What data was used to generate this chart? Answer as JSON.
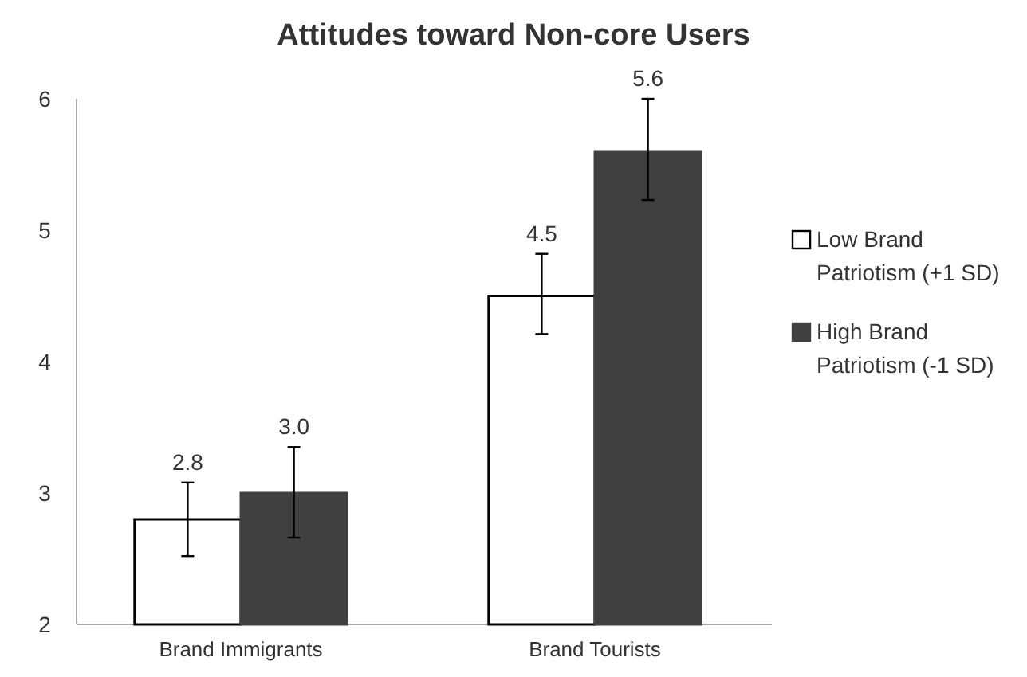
{
  "chart_data": {
    "type": "bar",
    "title": "Attitudes toward Non-core Users",
    "categories": [
      "Brand Immigrants",
      "Brand Tourists"
    ],
    "series": [
      {
        "name": "Low Brand Patriotism (+1 SD)",
        "color": "#ffffff",
        "values": [
          2.8,
          4.5
        ],
        "value_labels": [
          "2.8",
          "4.5"
        ],
        "errors": [
          [
            2.52,
            3.08
          ],
          [
            4.21,
            4.82
          ]
        ]
      },
      {
        "name": "High Brand Patriotism (-1 SD)",
        "color": "#404040",
        "values": [
          3.0,
          5.6
        ],
        "value_labels": [
          "3.0",
          "5.6"
        ],
        "errors": [
          [
            2.66,
            3.35
          ],
          [
            5.23,
            6.0
          ]
        ]
      }
    ],
    "ylim": [
      2,
      6
    ],
    "yticks": [
      2,
      3,
      4,
      5,
      6
    ],
    "legend": "right",
    "grid": false
  }
}
